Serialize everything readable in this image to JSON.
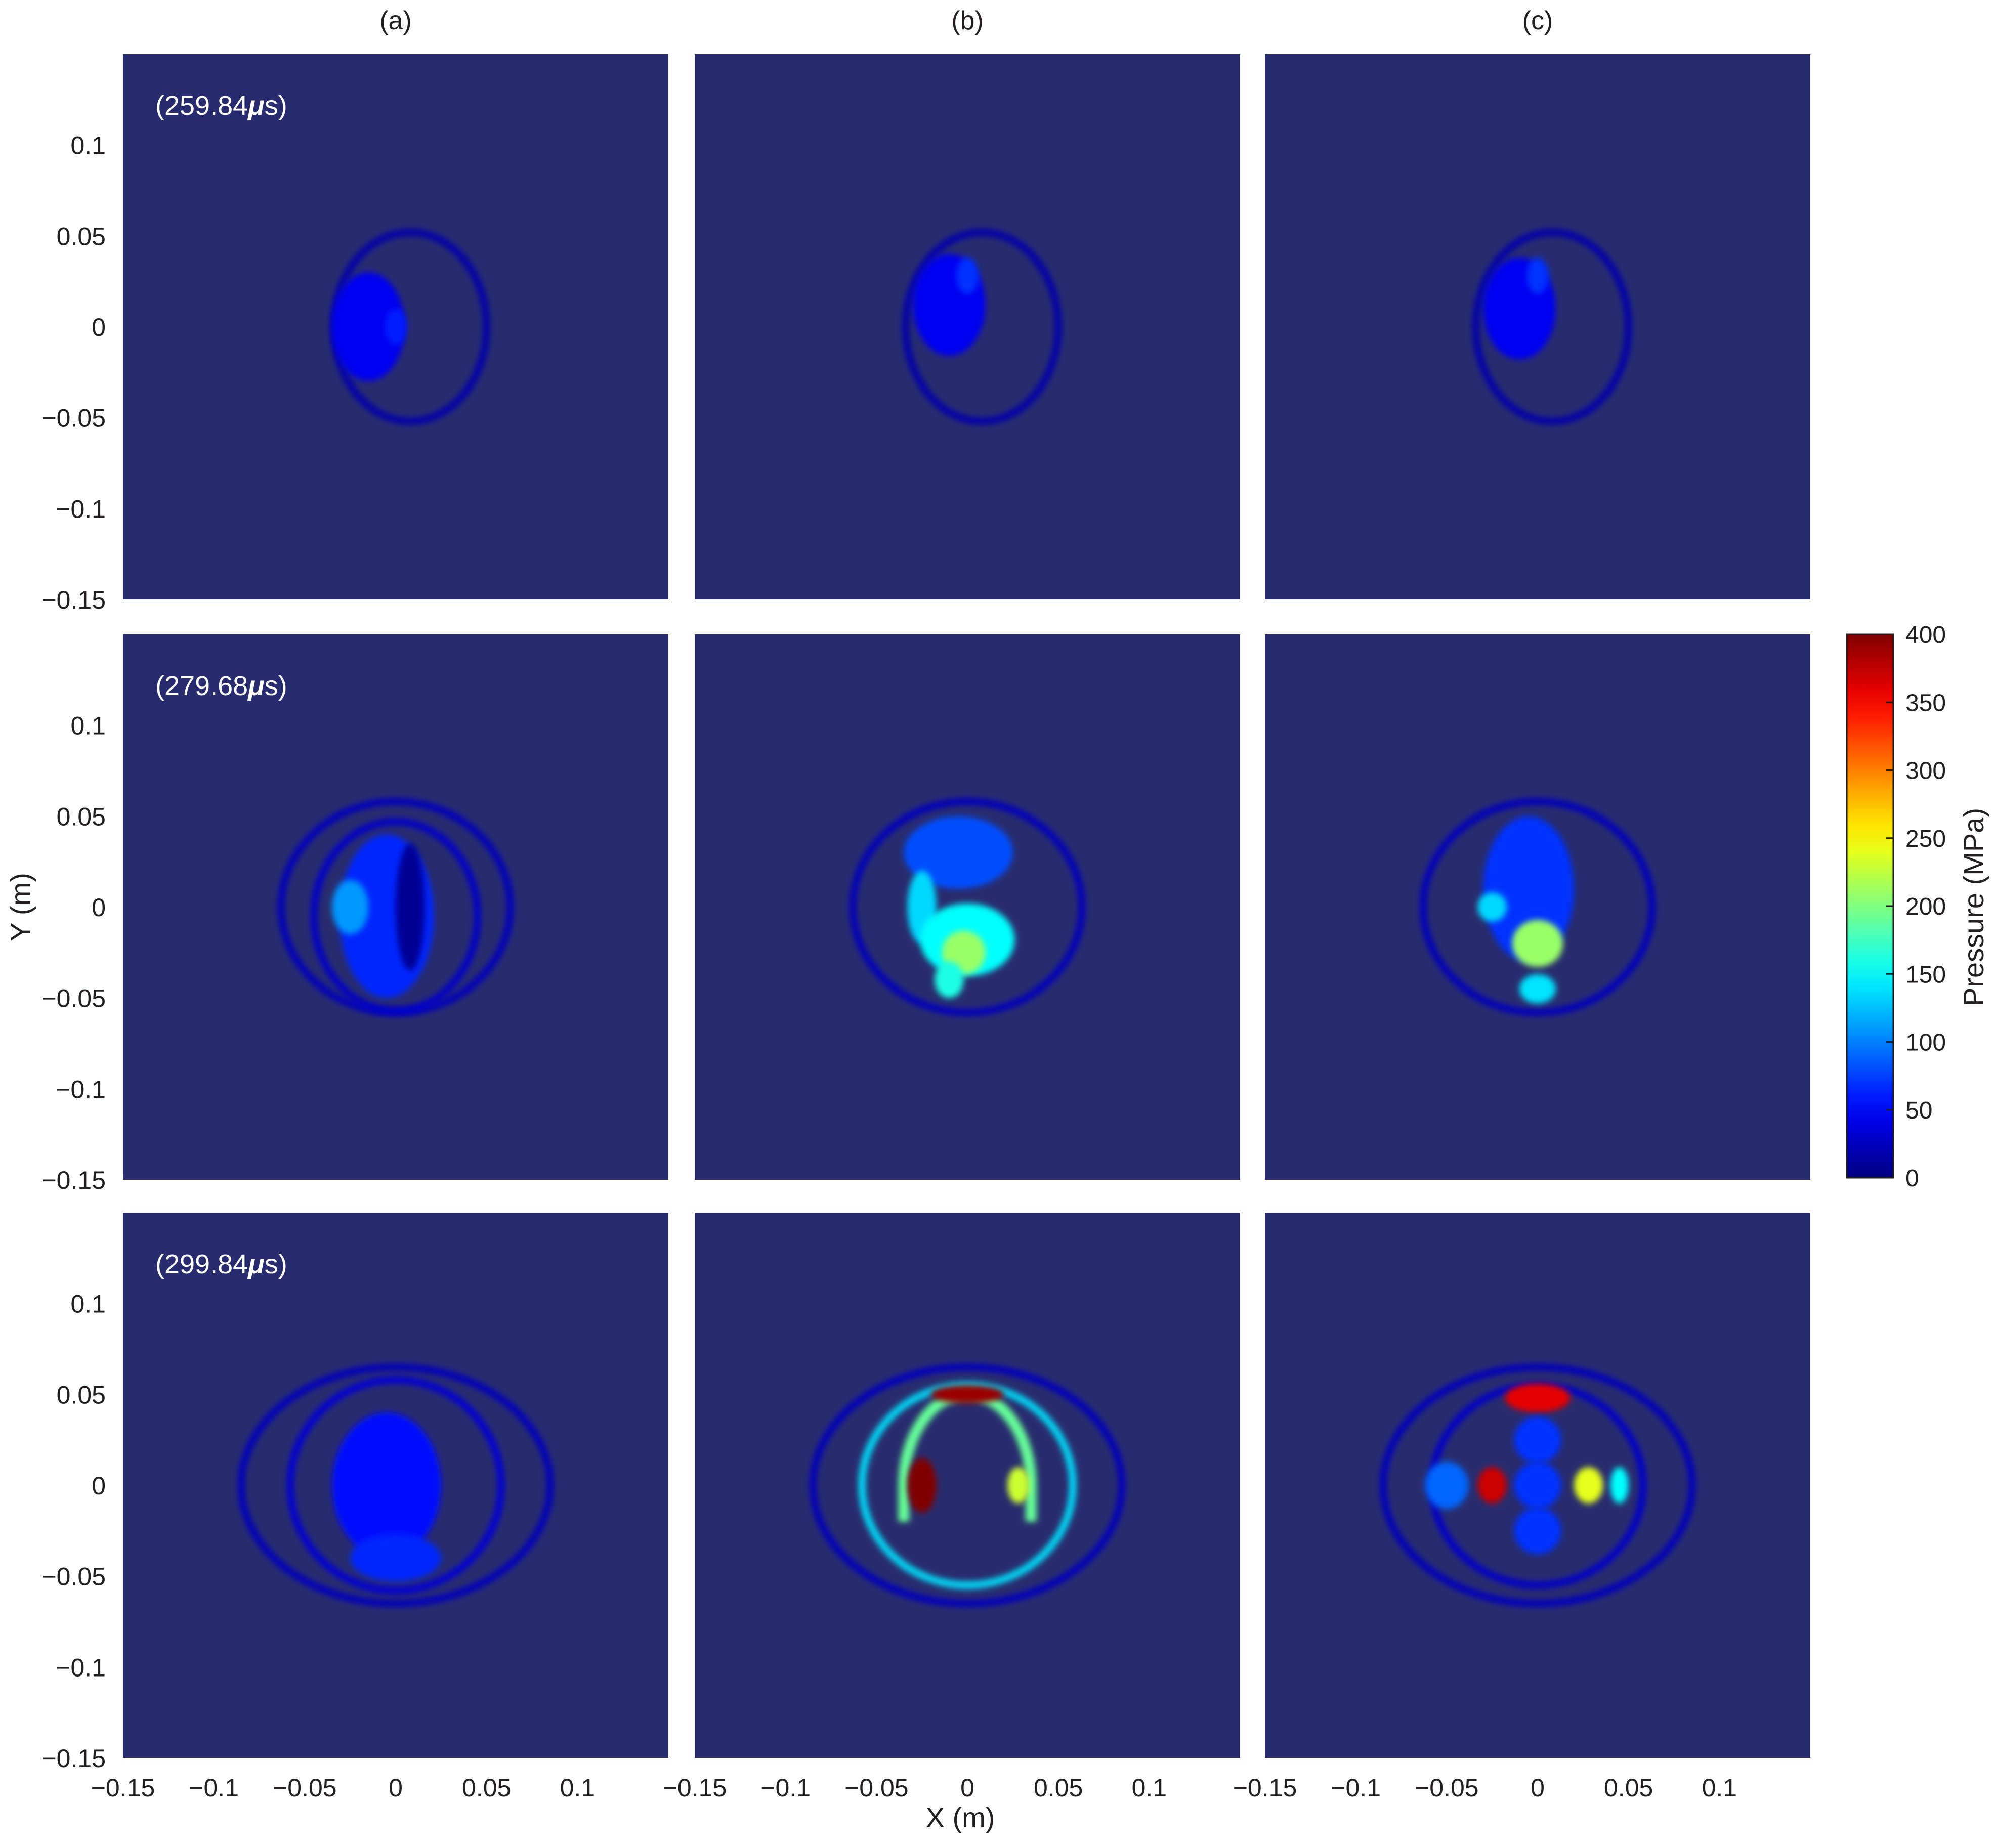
{
  "chart_data": {
    "type": "heatmap",
    "layout": {
      "rows": 3,
      "cols": 3
    },
    "column_labels": [
      "(a)",
      "(b)",
      "(c)"
    ],
    "row_time_labels": [
      {
        "prefix": "(259.84",
        "mu": "μ",
        "suffix": "s)"
      },
      {
        "prefix": "(279.68",
        "mu": "μ",
        "suffix": "s)"
      },
      {
        "prefix": "(299.84",
        "mu": "μ",
        "suffix": "s)"
      }
    ],
    "xlabel": "X (m)",
    "ylabel": "Y (m)",
    "xlim": [
      -0.15,
      0.15
    ],
    "ylim": [
      -0.15,
      0.15
    ],
    "xticks": [
      -0.15,
      -0.1,
      -0.05,
      0,
      0.05,
      0.1
    ],
    "yticks": [
      0.1,
      0.05,
      0,
      -0.05,
      -0.1,
      -0.15
    ],
    "xtick_labels": [
      "−0.15",
      "−0.1",
      "−0.05",
      "0",
      "0.05",
      "0.1"
    ],
    "ytick_labels": [
      "0.1",
      "0.05",
      "0",
      "−0.05",
      "−0.1",
      "−0.15"
    ],
    "colorbar": {
      "label": "Pressure (MPa)",
      "range": [
        0,
        400
      ],
      "ticks": [
        0,
        50,
        100,
        150,
        200,
        250,
        300,
        350,
        400
      ],
      "tick_labels": [
        "0",
        "50",
        "100",
        "150",
        "200",
        "250",
        "300",
        "350",
        "400"
      ],
      "colormap": "jet"
    },
    "panels": [
      {
        "row": 0,
        "col": 0,
        "features": [
          {
            "shape": "ring",
            "x": 0.008,
            "y": 0.0,
            "rx": 0.042,
            "ry": 0.052,
            "value": 18
          },
          {
            "shape": "blob",
            "x": -0.015,
            "y": 0.0,
            "rx": 0.02,
            "ry": 0.03,
            "value": 45
          },
          {
            "shape": "blob",
            "x": 0.0,
            "y": 0.0,
            "rx": 0.006,
            "ry": 0.01,
            "value": 60
          }
        ]
      },
      {
        "row": 0,
        "col": 1,
        "features": [
          {
            "shape": "ring",
            "x": 0.008,
            "y": 0.0,
            "rx": 0.042,
            "ry": 0.052,
            "value": 18
          },
          {
            "shape": "blob",
            "x": -0.01,
            "y": 0.012,
            "rx": 0.02,
            "ry": 0.028,
            "value": 45
          },
          {
            "shape": "blob",
            "x": 0.0,
            "y": 0.028,
            "rx": 0.006,
            "ry": 0.01,
            "value": 70
          }
        ]
      },
      {
        "row": 0,
        "col": 2,
        "features": [
          {
            "shape": "ring",
            "x": 0.008,
            "y": 0.0,
            "rx": 0.042,
            "ry": 0.052,
            "value": 18
          },
          {
            "shape": "blob",
            "x": -0.01,
            "y": 0.01,
            "rx": 0.02,
            "ry": 0.028,
            "value": 45
          },
          {
            "shape": "blob",
            "x": 0.0,
            "y": 0.028,
            "rx": 0.006,
            "ry": 0.01,
            "value": 70
          }
        ]
      },
      {
        "row": 1,
        "col": 0,
        "features": [
          {
            "shape": "ring",
            "x": 0.0,
            "y": 0.0,
            "rx": 0.063,
            "ry": 0.058,
            "value": 25
          },
          {
            "shape": "ring",
            "x": 0.0,
            "y": -0.005,
            "rx": 0.045,
            "ry": 0.052,
            "value": 30
          },
          {
            "shape": "blob",
            "x": -0.005,
            "y": -0.005,
            "rx": 0.026,
            "ry": 0.045,
            "value": 65
          },
          {
            "shape": "blob",
            "x": -0.025,
            "y": 0.0,
            "rx": 0.01,
            "ry": 0.015,
            "value": 110
          },
          {
            "shape": "blob",
            "x": 0.008,
            "y": 0.0,
            "rx": 0.008,
            "ry": 0.035,
            "value": 8
          }
        ]
      },
      {
        "row": 1,
        "col": 1,
        "features": [
          {
            "shape": "ring",
            "x": 0.0,
            "y": 0.0,
            "rx": 0.063,
            "ry": 0.058,
            "value": 25
          },
          {
            "shape": "blob",
            "x": -0.005,
            "y": 0.03,
            "rx": 0.03,
            "ry": 0.02,
            "value": 80
          },
          {
            "shape": "blob",
            "x": -0.025,
            "y": 0.0,
            "rx": 0.008,
            "ry": 0.02,
            "value": 135
          },
          {
            "shape": "blob",
            "x": 0.0,
            "y": -0.018,
            "rx": 0.026,
            "ry": 0.02,
            "value": 150
          },
          {
            "shape": "blob",
            "x": -0.002,
            "y": -0.025,
            "rx": 0.012,
            "ry": 0.012,
            "value": 210
          },
          {
            "shape": "blob",
            "x": -0.01,
            "y": -0.04,
            "rx": 0.008,
            "ry": 0.01,
            "value": 160
          }
        ]
      },
      {
        "row": 1,
        "col": 2,
        "features": [
          {
            "shape": "ring",
            "x": 0.0,
            "y": 0.0,
            "rx": 0.063,
            "ry": 0.058,
            "value": 25
          },
          {
            "shape": "blob",
            "x": -0.005,
            "y": 0.01,
            "rx": 0.025,
            "ry": 0.04,
            "value": 70
          },
          {
            "shape": "blob",
            "x": -0.025,
            "y": 0.0,
            "rx": 0.008,
            "ry": 0.008,
            "value": 135
          },
          {
            "shape": "blob",
            "x": 0.0,
            "y": -0.02,
            "rx": 0.014,
            "ry": 0.013,
            "value": 210
          },
          {
            "shape": "blob",
            "x": 0.0,
            "y": -0.045,
            "rx": 0.01,
            "ry": 0.008,
            "value": 140
          }
        ]
      },
      {
        "row": 2,
        "col": 0,
        "features": [
          {
            "shape": "ring",
            "x": 0.0,
            "y": 0.0,
            "rx": 0.085,
            "ry": 0.065,
            "value": 25
          },
          {
            "shape": "ring",
            "x": 0.0,
            "y": 0.0,
            "rx": 0.058,
            "ry": 0.058,
            "value": 35
          },
          {
            "shape": "blob",
            "x": -0.005,
            "y": 0.0,
            "rx": 0.03,
            "ry": 0.04,
            "value": 55
          },
          {
            "shape": "blob",
            "x": 0.0,
            "y": -0.04,
            "rx": 0.025,
            "ry": 0.013,
            "value": 65
          }
        ]
      },
      {
        "row": 2,
        "col": 1,
        "features": [
          {
            "shape": "ring",
            "x": 0.0,
            "y": 0.0,
            "rx": 0.085,
            "ry": 0.065,
            "value": 25
          },
          {
            "shape": "ring",
            "x": 0.0,
            "y": 0.0,
            "rx": 0.058,
            "ry": 0.055,
            "value": 140
          },
          {
            "shape": "arch",
            "x": 0.0,
            "y": 0.0,
            "rx": 0.035,
            "ry": 0.05,
            "value": 190
          },
          {
            "shape": "blob",
            "x": 0.0,
            "y": 0.05,
            "rx": 0.02,
            "ry": 0.005,
            "value": 390
          },
          {
            "shape": "blob",
            "x": -0.025,
            "y": 0.0,
            "rx": 0.008,
            "ry": 0.015,
            "value": 400
          },
          {
            "shape": "blob",
            "x": 0.028,
            "y": 0.0,
            "rx": 0.006,
            "ry": 0.01,
            "value": 230
          }
        ]
      },
      {
        "row": 2,
        "col": 2,
        "features": [
          {
            "shape": "ring",
            "x": 0.0,
            "y": 0.0,
            "rx": 0.085,
            "ry": 0.065,
            "value": 25
          },
          {
            "shape": "ring",
            "x": 0.0,
            "y": 0.0,
            "rx": 0.058,
            "ry": 0.055,
            "value": 30
          },
          {
            "shape": "blob",
            "x": 0.0,
            "y": 0.048,
            "rx": 0.018,
            "ry": 0.008,
            "value": 360
          },
          {
            "shape": "blob",
            "x": -0.025,
            "y": 0.0,
            "rx": 0.008,
            "ry": 0.01,
            "value": 370
          },
          {
            "shape": "blob",
            "x": 0.028,
            "y": 0.0,
            "rx": 0.008,
            "ry": 0.01,
            "value": 240
          },
          {
            "shape": "blob",
            "x": 0.045,
            "y": 0.0,
            "rx": 0.005,
            "ry": 0.01,
            "value": 150
          },
          {
            "shape": "blob",
            "x": 0.0,
            "y": 0.0,
            "rx": 0.013,
            "ry": 0.013,
            "value": 70
          },
          {
            "shape": "blob",
            "x": 0.0,
            "y": -0.025,
            "rx": 0.013,
            "ry": 0.013,
            "value": 70
          },
          {
            "shape": "blob",
            "x": -0.05,
            "y": 0.0,
            "rx": 0.012,
            "ry": 0.013,
            "value": 90
          },
          {
            "shape": "blob",
            "x": 0.0,
            "y": 0.025,
            "rx": 0.013,
            "ry": 0.013,
            "value": 70
          }
        ]
      }
    ]
  },
  "colors": {
    "background": "#282c6e",
    "label_text": "#231f20",
    "annotation_text": "#ffffff"
  }
}
